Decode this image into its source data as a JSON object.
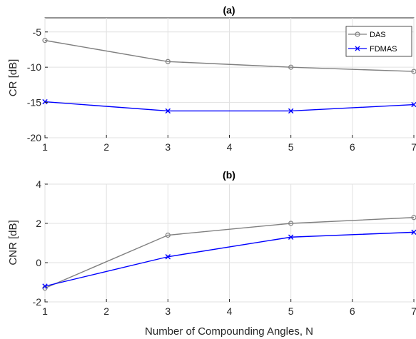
{
  "chart_data": [
    {
      "type": "line",
      "title": "(a)",
      "xlabel": "",
      "ylabel": "CR [dB]",
      "x": [
        1,
        3,
        5,
        7
      ],
      "xlim": [
        1,
        7
      ],
      "xticks": [
        1,
        2,
        3,
        4,
        5,
        6,
        7
      ],
      "ylim": [
        -20,
        -3
      ],
      "yticks": [
        -20,
        -15,
        -10,
        -5
      ],
      "grid": true,
      "legend": "top-right",
      "series": [
        {
          "name": "DAS",
          "values": [
            -6.2,
            -9.2,
            -10.0,
            -10.6
          ],
          "color": "#808080",
          "marker": "circle"
        },
        {
          "name": "FDMAS",
          "values": [
            -14.9,
            -16.2,
            -16.2,
            -15.3
          ],
          "color": "#0000ff",
          "marker": "x"
        }
      ]
    },
    {
      "type": "line",
      "title": "(b)",
      "xlabel": "Number of Compounding Angles, N",
      "ylabel": "CNR [dB]",
      "x": [
        1,
        3,
        5,
        7
      ],
      "xlim": [
        1,
        7
      ],
      "xticks": [
        1,
        2,
        3,
        4,
        5,
        6,
        7
      ],
      "ylim": [
        -2,
        4
      ],
      "yticks": [
        -2,
        0,
        2,
        4
      ],
      "grid": true,
      "series": [
        {
          "values": [
            -1.3,
            1.4,
            2.0,
            2.3
          ],
          "color": "#808080",
          "marker": "circle"
        },
        {
          "values": [
            -1.2,
            0.3,
            1.3,
            1.55
          ],
          "color": "#0000ff",
          "marker": "x"
        }
      ]
    }
  ]
}
